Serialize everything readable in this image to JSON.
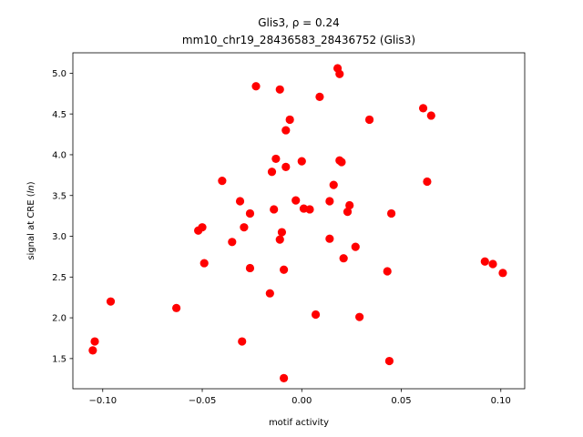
{
  "chart_data": {
    "type": "scatter",
    "title_gene": "Glis3",
    "title_stat": "ρ = 0.24",
    "subtitle": "mm10_chr19_28436583_28436752 (Glis3)",
    "xlabel": "motif activity",
    "ylabel_prefix": "signal at CRE (",
    "ylabel_italic": "ln",
    "ylabel_suffix": ")",
    "xlim": [
      -0.115,
      0.112
    ],
    "ylim": [
      1.13,
      5.25
    ],
    "xticks": [
      -0.1,
      -0.05,
      0.0,
      0.05,
      0.1
    ],
    "xtick_labels": [
      "−0.10",
      "−0.05",
      "0.00",
      "0.05",
      "0.10"
    ],
    "yticks": [
      1.5,
      2.0,
      2.5,
      3.0,
      3.5,
      4.0,
      4.5,
      5.0
    ],
    "ytick_labels": [
      "1.5",
      "2.0",
      "2.5",
      "3.0",
      "3.5",
      "4.0",
      "4.5",
      "5.0"
    ],
    "marker_color": "#ff0000",
    "grid": false,
    "points": [
      {
        "x": -0.105,
        "y": 1.6
      },
      {
        "x": -0.104,
        "y": 1.71
      },
      {
        "x": -0.096,
        "y": 2.2
      },
      {
        "x": -0.063,
        "y": 2.12
      },
      {
        "x": -0.052,
        "y": 3.07
      },
      {
        "x": -0.05,
        "y": 3.11
      },
      {
        "x": -0.049,
        "y": 2.67
      },
      {
        "x": -0.04,
        "y": 3.68
      },
      {
        "x": -0.035,
        "y": 2.93
      },
      {
        "x": -0.031,
        "y": 3.43
      },
      {
        "x": -0.03,
        "y": 1.71
      },
      {
        "x": -0.029,
        "y": 3.11
      },
      {
        "x": -0.026,
        "y": 3.28
      },
      {
        "x": -0.026,
        "y": 2.61
      },
      {
        "x": -0.023,
        "y": 4.84
      },
      {
        "x": -0.016,
        "y": 2.3
      },
      {
        "x": -0.015,
        "y": 3.79
      },
      {
        "x": -0.014,
        "y": 3.33
      },
      {
        "x": -0.013,
        "y": 3.95
      },
      {
        "x": -0.011,
        "y": 4.8
      },
      {
        "x": -0.011,
        "y": 2.96
      },
      {
        "x": -0.01,
        "y": 3.05
      },
      {
        "x": -0.009,
        "y": 2.59
      },
      {
        "x": -0.009,
        "y": 1.26
      },
      {
        "x": -0.008,
        "y": 4.3
      },
      {
        "x": -0.008,
        "y": 3.85
      },
      {
        "x": -0.006,
        "y": 4.43
      },
      {
        "x": -0.003,
        "y": 3.44
      },
      {
        "x": 0.0,
        "y": 3.92
      },
      {
        "x": 0.001,
        "y": 3.34
      },
      {
        "x": 0.004,
        "y": 3.33
      },
      {
        "x": 0.007,
        "y": 2.04
      },
      {
        "x": 0.009,
        "y": 4.71
      },
      {
        "x": 0.014,
        "y": 3.43
      },
      {
        "x": 0.014,
        "y": 2.97
      },
      {
        "x": 0.016,
        "y": 3.63
      },
      {
        "x": 0.018,
        "y": 5.06
      },
      {
        "x": 0.019,
        "y": 4.99
      },
      {
        "x": 0.019,
        "y": 3.93
      },
      {
        "x": 0.02,
        "y": 3.91
      },
      {
        "x": 0.021,
        "y": 2.73
      },
      {
        "x": 0.023,
        "y": 3.3
      },
      {
        "x": 0.024,
        "y": 3.38
      },
      {
        "x": 0.027,
        "y": 2.87
      },
      {
        "x": 0.029,
        "y": 2.01
      },
      {
        "x": 0.034,
        "y": 4.43
      },
      {
        "x": 0.043,
        "y": 2.57
      },
      {
        "x": 0.044,
        "y": 1.47
      },
      {
        "x": 0.045,
        "y": 3.28
      },
      {
        "x": 0.061,
        "y": 4.57
      },
      {
        "x": 0.063,
        "y": 3.67
      },
      {
        "x": 0.065,
        "y": 4.48
      },
      {
        "x": 0.092,
        "y": 2.69
      },
      {
        "x": 0.096,
        "y": 2.66
      },
      {
        "x": 0.101,
        "y": 2.55
      }
    ]
  }
}
